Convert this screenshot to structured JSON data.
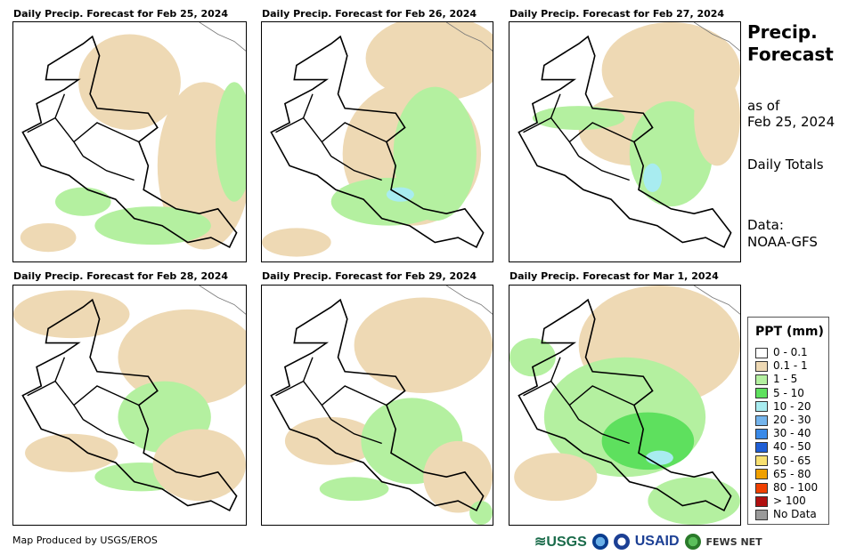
{
  "panels": [
    {
      "title": "Daily Precip. Forecast for Feb 25, 2024",
      "pattern": "a"
    },
    {
      "title": "Daily Precip. Forecast for Feb 26, 2024",
      "pattern": "b"
    },
    {
      "title": "Daily Precip. Forecast for Feb 27, 2024",
      "pattern": "c"
    },
    {
      "title": "Daily Precip. Forecast for Feb 28, 2024",
      "pattern": "d"
    },
    {
      "title": "Daily Precip. Forecast for Feb 29, 2024",
      "pattern": "e"
    },
    {
      "title": "Daily Precip. Forecast for Mar 1, 2024",
      "pattern": "f"
    }
  ],
  "sidebar": {
    "title_line1": "Precip.",
    "title_line2": "Forecast",
    "as_of": "as of",
    "date": "Feb 25, 2024",
    "totals": "Daily Totals",
    "data_label": "Data:",
    "data_source": "NOAA-GFS"
  },
  "legend": {
    "title": "PPT (mm)",
    "items": [
      {
        "label": "0 - 0.1",
        "color": "#ffffff"
      },
      {
        "label": "0.1 - 1",
        "color": "#eed9b4"
      },
      {
        "label": "1 - 5",
        "color": "#b4f0a0"
      },
      {
        "label": "5 - 10",
        "color": "#5ee05e"
      },
      {
        "label": "10 - 20",
        "color": "#a8ecf0"
      },
      {
        "label": "20 - 30",
        "color": "#74b4ec"
      },
      {
        "label": "30 - 40",
        "color": "#3a8ae8"
      },
      {
        "label": "40 - 50",
        "color": "#1f5fd6"
      },
      {
        "label": "50 - 65",
        "color": "#f8e070"
      },
      {
        "label": "65 - 80",
        "color": "#f0a000"
      },
      {
        "label": "80 - 100",
        "color": "#f04000"
      },
      {
        "label": "> 100",
        "color": "#b01010"
      },
      {
        "label": "No Data",
        "color": "#9a9a9a"
      }
    ]
  },
  "footer": {
    "credit": "Map Produced by USGS/EROS",
    "usgs": "≋USGS",
    "usaid": "USAID",
    "fews": "FEWS NET"
  }
}
